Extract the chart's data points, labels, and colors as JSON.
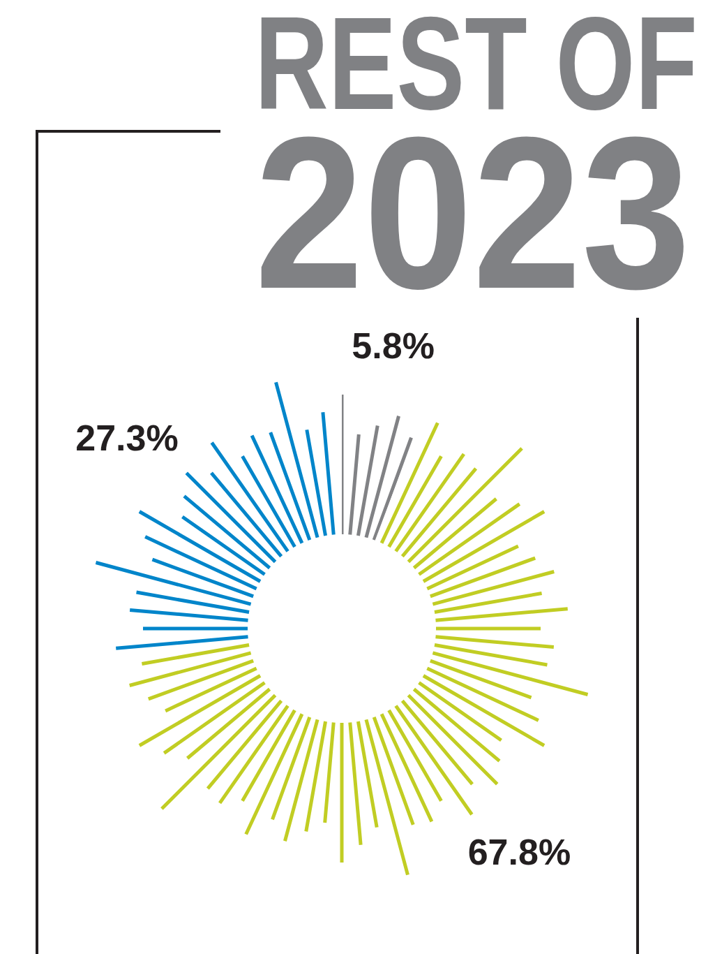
{
  "chart_data": {
    "type": "donut",
    "title": "REST OF\n2023",
    "categories": [
      null,
      null,
      null
    ],
    "values": [
      5.8,
      67.8,
      27.3
    ],
    "colors": [
      "#818285",
      "#c1cd23",
      "#0085ca"
    ],
    "value_labels": [
      "5.8%",
      "67.8%",
      "27.3%"
    ]
  }
}
